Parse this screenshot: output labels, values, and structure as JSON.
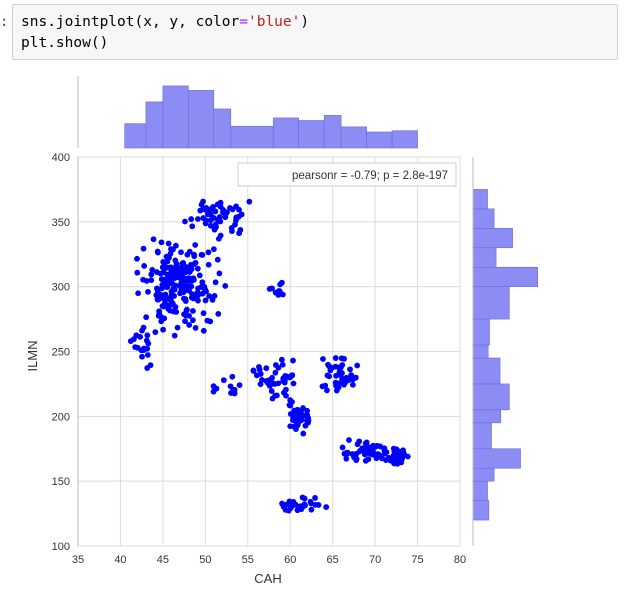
{
  "notebook": {
    "prompt_marker": ":",
    "code_line1_pre": "sns.jointplot(x, y, color",
    "code_line1_op": "=",
    "code_line1_str": "'blue'",
    "code_line1_post": ")",
    "code_line2": "plt.show()"
  },
  "chart_data": {
    "type": "scatter",
    "title": "",
    "xlabel": "CAH",
    "ylabel": "ILMN",
    "xlim": [
      35,
      80
    ],
    "ylim": [
      100,
      400
    ],
    "x_ticks": [
      "35",
      "40",
      "45",
      "50",
      "55",
      "60",
      "65",
      "70",
      "75",
      "80"
    ],
    "y_ticks": [
      "100",
      "150",
      "200",
      "250",
      "300",
      "350",
      "400"
    ],
    "annotation": "pearsonr = -0.79; p = 2.8e-197",
    "color": "#0000ff",
    "hist_color": "#8c8cf5",
    "grid": true,
    "clusters": [
      {
        "x_range": [
          40.5,
          53
        ],
        "y_range": [
          260,
          345
        ],
        "n": 220
      },
      {
        "x_range": [
          47,
          56
        ],
        "y_range": [
          330,
          378
        ],
        "n": 55
      },
      {
        "x_range": [
          40.5,
          45
        ],
        "y_range": [
          230,
          280
        ],
        "n": 20
      },
      {
        "x_range": [
          50,
          55
        ],
        "y_range": [
          210,
          235
        ],
        "n": 12
      },
      {
        "x_range": [
          57,
          60
        ],
        "y_range": [
          290,
          305
        ],
        "n": 10
      },
      {
        "x_range": [
          55,
          62
        ],
        "y_range": [
          205,
          250
        ],
        "n": 45
      },
      {
        "x_range": [
          59,
          63
        ],
        "y_range": [
          180,
          215
        ],
        "n": 40
      },
      {
        "x_range": [
          62,
          69
        ],
        "y_range": [
          210,
          250
        ],
        "n": 40
      },
      {
        "x_range": [
          64,
          74
        ],
        "y_range": [
          160,
          185
        ],
        "n": 55
      },
      {
        "x_range": [
          71,
          74.5
        ],
        "y_range": [
          160,
          178
        ],
        "n": 25
      },
      {
        "x_range": [
          57,
          66
        ],
        "y_range": [
          122,
          140
        ],
        "n": 30
      }
    ],
    "x_hist": {
      "edges": [
        40.5,
        43,
        45,
        48,
        51,
        53,
        58,
        61,
        64,
        66,
        69,
        72,
        75
      ],
      "heights": [
        0.38,
        0.72,
        0.97,
        0.9,
        0.61,
        0.34,
        0.47,
        0.43,
        0.51,
        0.33,
        0.25,
        0.27
      ]
    },
    "y_hist": {
      "edges": [
        120,
        135,
        150,
        160,
        175,
        195,
        205,
        225,
        245,
        255,
        275,
        300,
        315,
        330,
        345,
        360,
        375
      ],
      "widths": [
        0.24,
        0.22,
        0.32,
        0.72,
        0.28,
        0.42,
        0.55,
        0.41,
        0.23,
        0.25,
        0.55,
        0.98,
        0.35,
        0.6,
        0.32,
        0.22
      ]
    }
  }
}
